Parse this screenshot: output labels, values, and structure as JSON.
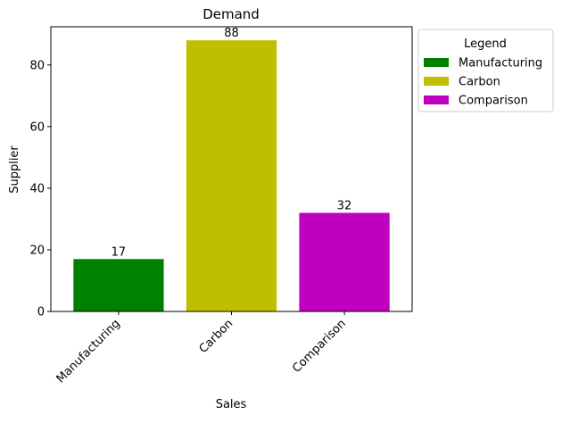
{
  "chart_data": {
    "type": "bar",
    "title": "Demand",
    "xlabel": "Sales",
    "ylabel": "Supplier",
    "categories": [
      "Manufacturing",
      "Carbon",
      "Comparison"
    ],
    "values": [
      17,
      88,
      32
    ],
    "colors": [
      "#008000",
      "#bfbf00",
      "#bf00bf"
    ],
    "ylim": [
      0,
      92.4
    ],
    "yticks": [
      0,
      20,
      40,
      60,
      80
    ],
    "grid": false,
    "legend": {
      "title": "Legend",
      "placement": "outside-top-right",
      "entries": [
        "Manufacturing",
        "Carbon",
        "Comparison"
      ]
    },
    "data_labels": [
      "17",
      "88",
      "32"
    ]
  }
}
